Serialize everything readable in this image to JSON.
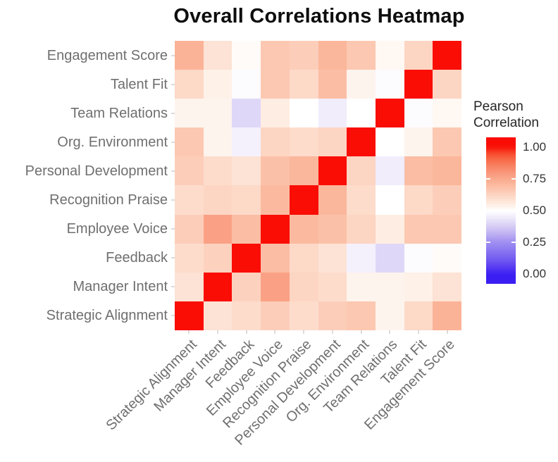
{
  "title": "Overall Correlations Heatmap",
  "legend": {
    "title_lines": [
      "Pearson",
      "Correlation"
    ],
    "ticks": [
      "1.00",
      "0.75",
      "0.50",
      "0.25",
      "0.00"
    ],
    "tick_values": [
      1.0,
      0.75,
      0.5,
      0.25,
      0.0
    ],
    "edge_tick_values": [
      0.75,
      0.25
    ]
  },
  "chart_data": {
    "type": "heatmap",
    "title": "Overall Correlations Heatmap",
    "legend_title": "Pearson Correlation",
    "x_categories": [
      "Strategic Alignment",
      "Manager Intent",
      "Feedback",
      "Employee Voice",
      "Recognition Praise",
      "Personal Development",
      "Org. Environment",
      "Team Relations",
      "Talent Fit",
      "Engagement Score"
    ],
    "y_categories": [
      "Engagement Score",
      "Talent Fit",
      "Team Relations",
      "Org. Environment",
      "Personal Development",
      "Recognition Praise",
      "Employee Voice",
      "Feedback",
      "Manager Intent",
      "Strategic Alignment"
    ],
    "y_order_note": "y_categories listed top to bottom; values rows match y_categories, columns match x_categories",
    "values": [
      [
        0.72,
        0.58,
        0.51,
        0.66,
        0.64,
        0.71,
        0.66,
        0.52,
        0.62,
        1.0
      ],
      [
        0.61,
        0.54,
        0.49,
        0.66,
        0.61,
        0.69,
        0.53,
        0.49,
        1.0,
        0.62
      ],
      [
        0.53,
        0.53,
        0.4,
        0.55,
        0.5,
        0.45,
        0.5,
        1.0,
        0.49,
        0.52
      ],
      [
        0.66,
        0.53,
        0.46,
        0.62,
        0.6,
        0.62,
        1.0,
        0.5,
        0.53,
        0.66
      ],
      [
        0.64,
        0.6,
        0.58,
        0.68,
        0.71,
        1.0,
        0.62,
        0.45,
        0.69,
        0.71
      ],
      [
        0.6,
        0.62,
        0.61,
        0.7,
        1.0,
        0.71,
        0.6,
        0.5,
        0.61,
        0.64
      ],
      [
        0.64,
        0.77,
        0.69,
        1.0,
        0.7,
        0.68,
        0.62,
        0.55,
        0.66,
        0.66
      ],
      [
        0.6,
        0.63,
        1.0,
        0.69,
        0.61,
        0.58,
        0.46,
        0.4,
        0.49,
        0.51
      ],
      [
        0.58,
        1.0,
        0.63,
        0.77,
        0.62,
        0.6,
        0.53,
        0.53,
        0.54,
        0.58
      ],
      [
        1.0,
        0.58,
        0.6,
        0.64,
        0.6,
        0.64,
        0.66,
        0.53,
        0.61,
        0.72
      ]
    ],
    "scale": {
      "min": 0.0,
      "mid": 0.5,
      "max": 1.0,
      "low_color": "#3B1FF2",
      "mid_color": "#FFFFFF",
      "high_color": "#F90D05",
      "anchors": [
        [
          0.0,
          "#3B1FF2"
        ],
        [
          0.05,
          "#5539F1"
        ],
        [
          0.1,
          "#6B52F1"
        ],
        [
          0.15,
          "#7E68F1"
        ],
        [
          0.2,
          "#8F7CF1"
        ],
        [
          0.25,
          "#9F8EF1"
        ],
        [
          0.3,
          "#B7A8F2"
        ],
        [
          0.35,
          "#CCC0F4"
        ],
        [
          0.4,
          "#DFD7F7"
        ],
        [
          0.45,
          "#F1EDFB"
        ],
        [
          0.5,
          "#FFFFFF"
        ],
        [
          0.55,
          "#FEEDE2"
        ],
        [
          0.6,
          "#FDDCCC"
        ],
        [
          0.65,
          "#FCCBB6"
        ],
        [
          0.7,
          "#FBBA9F"
        ],
        [
          0.75,
          "#FAA98D"
        ],
        [
          0.8,
          "#F9957A"
        ],
        [
          0.85,
          "#F88362"
        ],
        [
          0.9,
          "#F86A48"
        ],
        [
          0.95,
          "#F84A2C"
        ],
        [
          1.0,
          "#F90D05"
        ]
      ]
    },
    "grid_lines": false,
    "legend_position": "right"
  }
}
